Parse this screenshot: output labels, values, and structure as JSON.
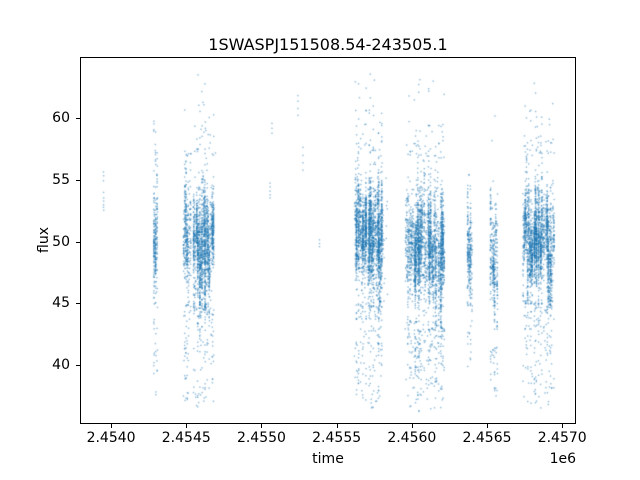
{
  "chart_data": {
    "type": "scatter",
    "title": "1SWASPJ151508.54-243505.1",
    "xlabel": "time",
    "ylabel": "flux",
    "x_offset_label": "1e6",
    "xlim": [
      2453800,
      2457085
    ],
    "ylim": [
      35.3,
      64.9
    ],
    "xticks": {
      "values": [
        2454000,
        2454500,
        2455000,
        2455500,
        2456000,
        2456500,
        2457000
      ],
      "labels": [
        "2.4540",
        "2.4545",
        "2.4550",
        "2.4555",
        "2.4560",
        "2.4565",
        "2.4570"
      ]
    },
    "yticks": {
      "values": [
        40,
        45,
        50,
        55,
        60
      ],
      "labels": [
        "40",
        "45",
        "50",
        "55",
        "60"
      ]
    },
    "grid": false,
    "legend": false,
    "marker": {
      "color": "#1f77b4",
      "alpha": 0.5,
      "size": 1.4
    },
    "seed": 42,
    "point_clusters": [
      {
        "t0": 2454286,
        "t1": 2454306,
        "nights": 3,
        "core": {
          "n": 240,
          "mu": 50.6,
          "sigma": 2.1,
          "min": 45.9,
          "max": 56.2
        },
        "upper": {
          "n": 14,
          "from": 56.2,
          "to": 59.8
        },
        "lower": {
          "n": 28,
          "from": 45.9,
          "to": 37.5
        }
      },
      {
        "t0": 2454483,
        "t1": 2454529,
        "nights": 7,
        "core": {
          "n": 350,
          "mu": 50.3,
          "sigma": 2.2,
          "min": 44.9,
          "max": 56.9
        },
        "upper": {
          "n": 8,
          "from": 56.9,
          "to": 61.0
        },
        "lower": {
          "n": 45,
          "from": 44.9,
          "to": 37.0
        }
      },
      {
        "t0": 2454549,
        "t1": 2454625,
        "nights": 12,
        "core": {
          "n": 900,
          "mu": 50.1,
          "sigma": 2.4,
          "min": 44.6,
          "max": 57.3
        },
        "upper": {
          "n": 22,
          "from": 57.3,
          "to": 63.6
        },
        "lower": {
          "n": 70,
          "from": 44.6,
          "to": 36.6
        }
      },
      {
        "t0": 2454625,
        "t1": 2454681,
        "nights": 9,
        "core": {
          "n": 650,
          "mu": 49.8,
          "sigma": 2.4,
          "min": 44.6,
          "max": 57.0
        },
        "upper": {
          "n": 12,
          "from": 57.0,
          "to": 62.5
        },
        "lower": {
          "n": 55,
          "from": 44.6,
          "to": 36.8
        }
      },
      {
        "t0": 2455625,
        "t1": 2455695,
        "nights": 11,
        "core": {
          "n": 850,
          "mu": 50.6,
          "sigma": 2.2,
          "min": 45.0,
          "max": 57.3
        },
        "upper": {
          "n": 20,
          "from": 57.3,
          "to": 63.5
        },
        "lower": {
          "n": 60,
          "from": 45.0,
          "to": 36.8
        }
      },
      {
        "t0": 2455710,
        "t1": 2455800,
        "nights": 14,
        "core": {
          "n": 1250,
          "mu": 50.2,
          "sigma": 2.4,
          "min": 44.8,
          "max": 57.4
        },
        "upper": {
          "n": 26,
          "from": 57.4,
          "to": 63.6
        },
        "lower": {
          "n": 85,
          "from": 44.8,
          "to": 36.4
        }
      },
      {
        "t0": 2455620,
        "t1": 2455838,
        "nights": 30,
        "core": {
          "n": 170,
          "mu": 50.3,
          "sigma": 2.6,
          "min": 44.8,
          "max": 57.0
        },
        "lower": {
          "n": 25,
          "from": 44.8,
          "to": 37.0
        }
      },
      {
        "t0": 2455960,
        "t1": 2456030,
        "nights": 11,
        "core": {
          "n": 550,
          "mu": 49.7,
          "sigma": 2.5,
          "min": 43.5,
          "max": 56.9
        },
        "upper": {
          "n": 15,
          "from": 56.9,
          "to": 63.0
        },
        "lower": {
          "n": 60,
          "from": 43.5,
          "to": 36.6
        }
      },
      {
        "t0": 2456040,
        "t1": 2456125,
        "nights": 13,
        "core": {
          "n": 950,
          "mu": 49.5,
          "sigma": 2.6,
          "min": 42.9,
          "max": 57.0
        },
        "upper": {
          "n": 20,
          "from": 57.0,
          "to": 63.7
        },
        "lower": {
          "n": 80,
          "from": 42.9,
          "to": 36.2
        }
      },
      {
        "t0": 2456135,
        "t1": 2456215,
        "nights": 12,
        "core": {
          "n": 850,
          "mu": 49.6,
          "sigma": 2.6,
          "min": 43.0,
          "max": 56.8
        },
        "upper": {
          "n": 18,
          "from": 56.8,
          "to": 63.2
        },
        "lower": {
          "n": 70,
          "from": 43.0,
          "to": 36.5
        }
      },
      {
        "t0": 2455958,
        "t1": 2456216,
        "nights": 30,
        "core": {
          "n": 140,
          "mu": 49.8,
          "sigma": 2.8,
          "min": 43.0,
          "max": 56.5
        },
        "lower": {
          "n": 20,
          "from": 43.0,
          "to": 37.0
        }
      },
      {
        "t0": 2456372,
        "t1": 2456400,
        "nights": 4,
        "core": {
          "n": 260,
          "mu": 48.9,
          "sigma": 2.1,
          "min": 43.2,
          "max": 54.4
        },
        "upper": {
          "n": 4,
          "from": 54.4,
          "to": 55.5
        },
        "lower": {
          "n": 12,
          "from": 43.2,
          "to": 39.5
        }
      },
      {
        "t0": 2456524,
        "t1": 2456568,
        "nights": 6,
        "core": {
          "n": 330,
          "mu": 48.8,
          "sigma": 2.2,
          "min": 41.5,
          "max": 54.2
        },
        "upper": {
          "n": 3,
          "from": 54.2,
          "to": 55.2
        },
        "lower": {
          "n": 30,
          "from": 41.5,
          "to": 37.3
        }
      },
      {
        "t0": 2456740,
        "t1": 2456800,
        "nights": 9,
        "core": {
          "n": 650,
          "mu": 50.4,
          "sigma": 2.2,
          "min": 45.2,
          "max": 57.0
        },
        "upper": {
          "n": 16,
          "from": 57.0,
          "to": 62.5
        },
        "lower": {
          "n": 55,
          "from": 45.2,
          "to": 36.8
        }
      },
      {
        "t0": 2456815,
        "t1": 2456885,
        "nights": 11,
        "core": {
          "n": 900,
          "mu": 50.2,
          "sigma": 2.3,
          "min": 45.0,
          "max": 57.2
        },
        "upper": {
          "n": 20,
          "from": 57.2,
          "to": 63.3
        },
        "lower": {
          "n": 70,
          "from": 45.0,
          "to": 36.4
        }
      },
      {
        "t0": 2456893,
        "t1": 2456945,
        "nights": 8,
        "core": {
          "n": 550,
          "mu": 50.0,
          "sigma": 2.3,
          "min": 44.8,
          "max": 56.8
        },
        "upper": {
          "n": 12,
          "from": 56.8,
          "to": 62.0
        },
        "lower": {
          "n": 50,
          "from": 44.8,
          "to": 36.6
        }
      }
    ],
    "isolated_points": [
      [
        2453949.5,
        55.65
      ],
      [
        2453950.5,
        55.35
      ],
      [
        2453949.5,
        54.95
      ],
      [
        2453950,
        54.0
      ],
      [
        2453951,
        53.55
      ],
      [
        2453950.5,
        53.3
      ],
      [
        2453950,
        53.0
      ],
      [
        2453949.5,
        52.8
      ],
      [
        2453951,
        52.55
      ],
      [
        2454694,
        57.2
      ],
      [
        2455057,
        54.75
      ],
      [
        2455058,
        54.45
      ],
      [
        2455057,
        54.1
      ],
      [
        2455058,
        53.8
      ],
      [
        2455057,
        53.55
      ],
      [
        2455070,
        59.6
      ],
      [
        2455070,
        59.2
      ],
      [
        2455070,
        58.8
      ],
      [
        2455243,
        61.85
      ],
      [
        2455243,
        61.4
      ],
      [
        2455243,
        60.8
      ],
      [
        2455243,
        60.25
      ],
      [
        2455276,
        57.65
      ],
      [
        2455276,
        57.0
      ],
      [
        2455276,
        56.4
      ],
      [
        2455276,
        55.8
      ],
      [
        2455386,
        50.15
      ],
      [
        2455386,
        49.85
      ],
      [
        2455386,
        49.6
      ],
      [
        2456533,
        58.2
      ],
      [
        2456553,
        60.2
      ]
    ]
  }
}
